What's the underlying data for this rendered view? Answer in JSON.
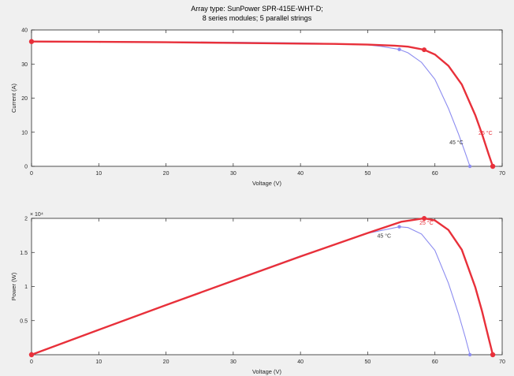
{
  "figure": {
    "title_line1": "Array type: SunPower SPR-415E-WHT-D;",
    "title_line2": "8 series modules; 5 parallel strings",
    "background": "#f0f0f0"
  },
  "colors": {
    "hot": "#e8303a",
    "cool": "#8c8cf0",
    "axes_bg": "#ffffff"
  },
  "chart_data": [
    {
      "type": "line",
      "xlabel": "Voltage (V)",
      "ylabel": "Current (A)",
      "xlim": [
        0,
        70
      ],
      "ylim": [
        0,
        40
      ],
      "xticks": [
        0,
        10,
        20,
        30,
        40,
        50,
        60,
        70
      ],
      "yticks": [
        0,
        10,
        20,
        30,
        40
      ],
      "series": [
        {
          "temp_label": "25 °C",
          "color": "#e8303a",
          "x": [
            0,
            10,
            20,
            30,
            40,
            45,
            50,
            54,
            56,
            58.4,
            60,
            62,
            64,
            66,
            67,
            68,
            68.6
          ],
          "y": [
            36.6,
            36.5,
            36.4,
            36.2,
            36.0,
            35.9,
            35.7,
            35.4,
            35.1,
            34.2,
            32.8,
            29.5,
            24,
            15,
            9.5,
            3.5,
            0
          ],
          "mpp": [
            58.4,
            34.2
          ],
          "end": [
            68.6,
            0
          ]
        },
        {
          "temp_label": "45 °C",
          "color": "#8c8cf0",
          "x": [
            0,
            10,
            20,
            30,
            40,
            45,
            50,
            52,
            54.7,
            56,
            58,
            60,
            62,
            63.5,
            64.5,
            65.2
          ],
          "y": [
            36.7,
            36.6,
            36.5,
            36.4,
            36.2,
            36.0,
            35.6,
            35.2,
            34.3,
            33.3,
            30.5,
            25.5,
            17,
            9.5,
            4,
            0
          ],
          "mpp": [
            54.7,
            34.3
          ],
          "end": [
            65.2,
            0
          ]
        }
      ],
      "start_point": [
        0,
        36.6
      ]
    },
    {
      "type": "line",
      "xlabel": "Voltage (V)",
      "ylabel": "Power (W)",
      "exponent_label": "× 10⁴",
      "xlim": [
        0,
        70
      ],
      "ylim": [
        0,
        2
      ],
      "yrange_note": "values in units of 10^4 W",
      "xticks": [
        0,
        10,
        20,
        30,
        40,
        50,
        60,
        70
      ],
      "yticks": [
        0.5,
        1,
        1.5,
        2
      ],
      "series": [
        {
          "temp_label": "25 °C",
          "color": "#e8303a",
          "x": [
            0,
            10,
            20,
            30,
            40,
            50,
            55,
            58.4,
            60,
            62,
            64,
            66,
            67,
            68,
            68.6
          ],
          "y": [
            0,
            0.365,
            0.728,
            1.086,
            1.44,
            1.785,
            1.95,
            2.0,
            1.97,
            1.83,
            1.54,
            0.99,
            0.64,
            0.24,
            0
          ],
          "mpp": [
            58.4,
            2.0
          ],
          "end": [
            68.6,
            0
          ]
        },
        {
          "temp_label": "45 °C",
          "color": "#8c8cf0",
          "x": [
            0,
            10,
            20,
            30,
            40,
            50,
            54.7,
            56,
            58,
            60,
            62,
            63.5,
            64.5,
            65.2
          ],
          "y": [
            0,
            0.366,
            0.73,
            1.092,
            1.448,
            1.78,
            1.876,
            1.865,
            1.77,
            1.53,
            1.05,
            0.6,
            0.26,
            0
          ],
          "mpp": [
            54.7,
            1.876
          ],
          "end": [
            65.2,
            0
          ]
        }
      ],
      "start_point": [
        0,
        0
      ]
    }
  ]
}
